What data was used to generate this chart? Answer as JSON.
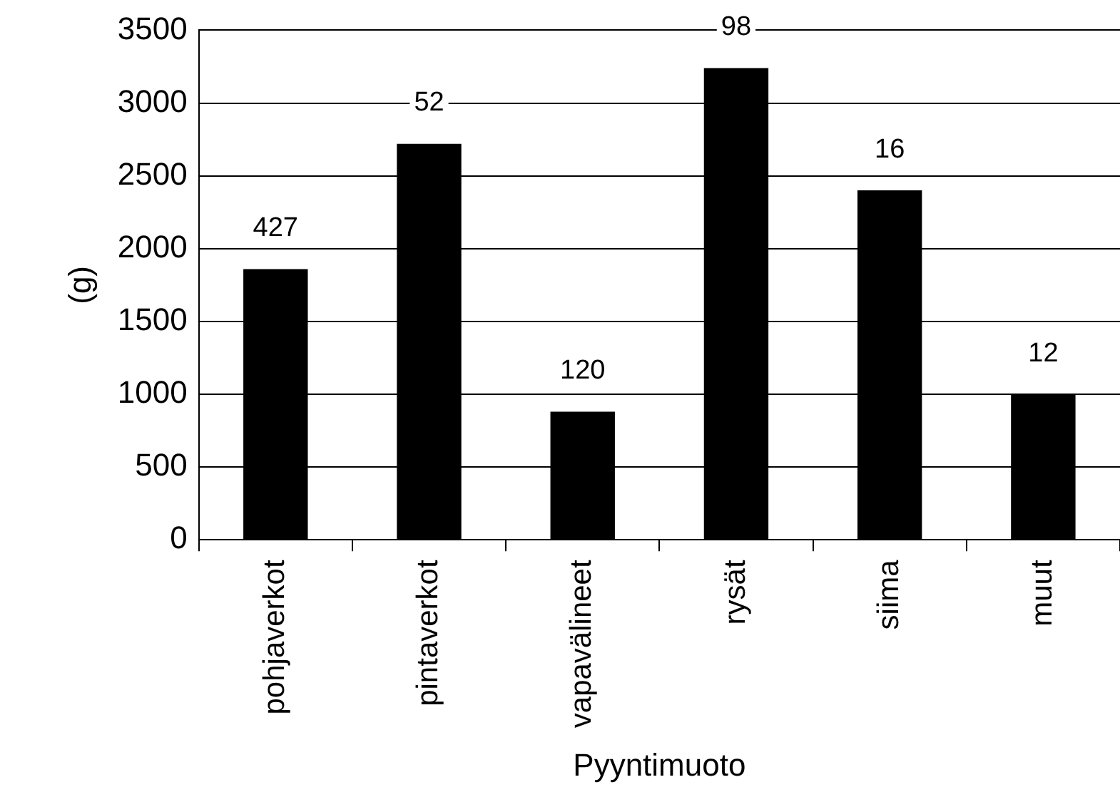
{
  "chart_data": {
    "type": "bar",
    "xlabel": "Pyyntimuoto",
    "ylabel": "(g)",
    "categories": [
      "pohjaverkot",
      "pintaverkot",
      "vapavälineet",
      "rysät",
      "siima",
      "muut"
    ],
    "values": [
      1860,
      2720,
      880,
      3240,
      2400,
      1000
    ],
    "color": "#000000",
    "ylim": [
      0,
      3500
    ],
    "yticks": [
      0,
      500,
      1000,
      1500,
      2000,
      2500,
      3000,
      3500
    ],
    "grid": "y",
    "annotations": [
      {
        "text": "427",
        "x": "pohjaverkot",
        "y": 1860
      },
      {
        "text": "52",
        "x": "pintaverkot",
        "y": 2720
      },
      {
        "text": "120",
        "x": "vapavälineet",
        "y": 880
      },
      {
        "text": "98",
        "x": "rysät",
        "y": 3240
      },
      {
        "text": "16",
        "x": "siima",
        "y": 2400
      },
      {
        "text": "12",
        "x": "muut",
        "y": 1000
      }
    ]
  }
}
